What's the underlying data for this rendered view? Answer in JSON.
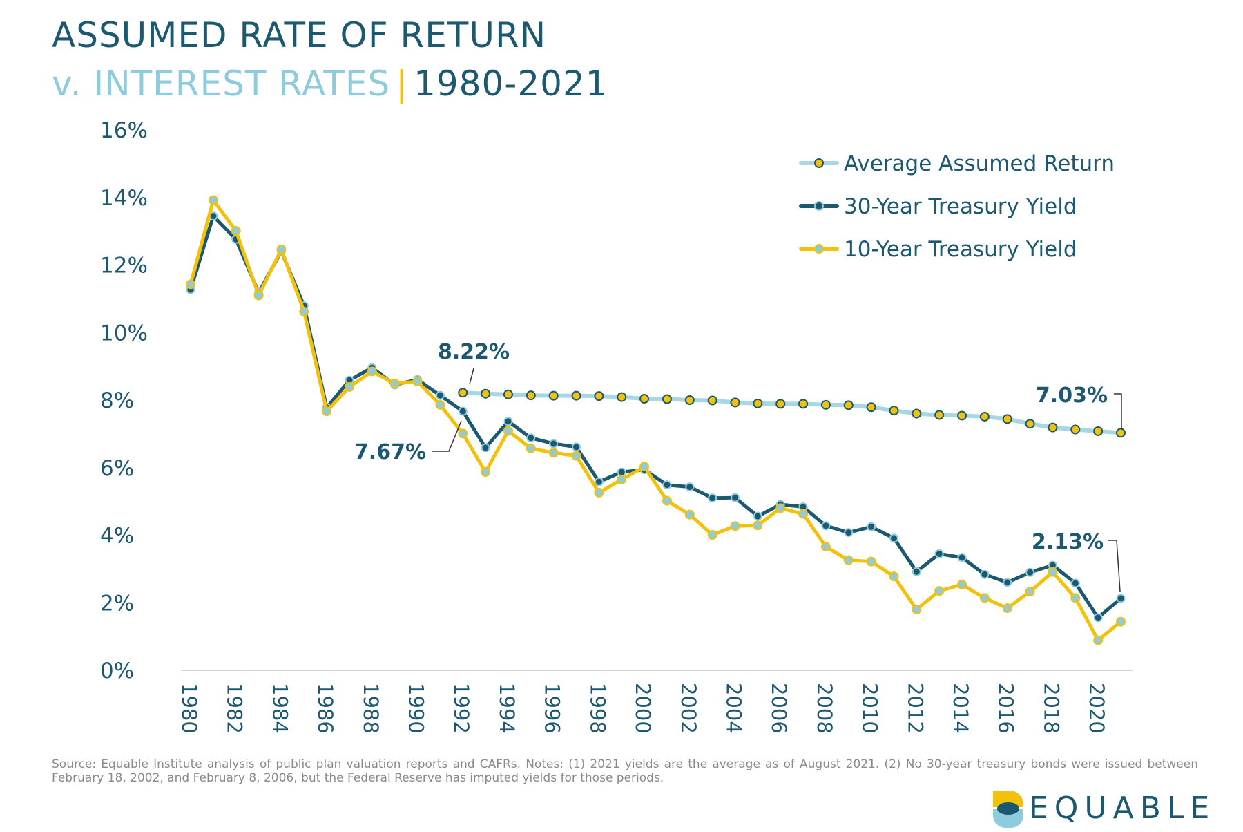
{
  "title": {
    "line1": "ASSUMED RATE OF RETURN",
    "line2_part1": "v. INTEREST RATES",
    "separator": "|",
    "line2_part2": "1980-2021"
  },
  "colors": {
    "title_dark": "#1c5870",
    "title_light": "#8ecbdc",
    "accent_yellow": "#f3c00a",
    "assumed_line": "#a8d6e3",
    "treasury30_line": "#1c5870",
    "treasury10_line": "#f3c00a",
    "axis_text": "#1c5870",
    "footnote_text": "#8a8a8a"
  },
  "chart_data": {
    "type": "line",
    "title": "ASSUMED RATE OF RETURN v. INTEREST RATES | 1980-2021",
    "xlabel": "",
    "ylabel": "",
    "ylim": [
      0,
      16
    ],
    "yticks": [
      "0%",
      "2%",
      "4%",
      "6%",
      "8%",
      "10%",
      "12%",
      "14%",
      "16%"
    ],
    "xticks": [
      "1980",
      "1982",
      "1984",
      "1986",
      "1988",
      "1990",
      "1992",
      "1994",
      "1996",
      "1998",
      "2000",
      "2002",
      "2004",
      "2006",
      "2008",
      "2010",
      "2012",
      "2014",
      "2016",
      "2018",
      "2020"
    ],
    "grid": false,
    "legend": "top-right",
    "series": [
      {
        "name": "Average Assumed Return",
        "x": [
          1992,
          1993,
          1994,
          1995,
          1996,
          1997,
          1998,
          1999,
          2000,
          2001,
          2002,
          2003,
          2004,
          2005,
          2006,
          2007,
          2008,
          2009,
          2010,
          2011,
          2012,
          2013,
          2014,
          2015,
          2016,
          2017,
          2018,
          2019,
          2020,
          2021
        ],
        "values": [
          8.22,
          8.19,
          8.17,
          8.14,
          8.13,
          8.13,
          8.12,
          8.09,
          8.04,
          8.03,
          8.0,
          7.99,
          7.93,
          7.9,
          7.89,
          7.89,
          7.86,
          7.85,
          7.79,
          7.69,
          7.6,
          7.56,
          7.54,
          7.51,
          7.44,
          7.3,
          7.19,
          7.13,
          7.08,
          7.03
        ]
      },
      {
        "name": "30-Year Treasury Yield",
        "x": [
          1980,
          1981,
          1982,
          1983,
          1984,
          1985,
          1986,
          1987,
          1988,
          1989,
          1990,
          1991,
          1992,
          1993,
          1994,
          1995,
          1996,
          1997,
          1998,
          1999,
          2000,
          2001,
          2002,
          2003,
          2004,
          2005,
          2006,
          2007,
          2008,
          2009,
          2010,
          2011,
          2012,
          2013,
          2014,
          2015,
          2016,
          2017,
          2018,
          2019,
          2020,
          2021
        ],
        "values": [
          11.27,
          13.45,
          12.76,
          11.18,
          12.41,
          10.79,
          7.78,
          8.59,
          8.96,
          8.45,
          8.61,
          8.14,
          7.67,
          6.59,
          7.37,
          6.88,
          6.71,
          6.61,
          5.58,
          5.87,
          5.94,
          5.49,
          5.43,
          5.1,
          5.11,
          4.56,
          4.91,
          4.84,
          4.28,
          4.08,
          4.25,
          3.91,
          2.92,
          3.45,
          3.34,
          2.84,
          2.6,
          2.9,
          3.11,
          2.58,
          1.56,
          2.13
        ]
      },
      {
        "name": "10-Year Treasury Yield",
        "x": [
          1980,
          1981,
          1982,
          1983,
          1984,
          1985,
          1986,
          1987,
          1988,
          1989,
          1990,
          1991,
          1992,
          1993,
          1994,
          1995,
          1996,
          1997,
          1998,
          1999,
          2000,
          2001,
          2002,
          2003,
          2004,
          2005,
          2006,
          2007,
          2008,
          2009,
          2010,
          2011,
          2012,
          2013,
          2014,
          2015,
          2016,
          2017,
          2018,
          2019,
          2020,
          2021
        ],
        "values": [
          11.43,
          13.92,
          13.01,
          11.1,
          12.46,
          10.62,
          7.67,
          8.39,
          8.85,
          8.49,
          8.55,
          7.86,
          7.01,
          5.87,
          7.09,
          6.57,
          6.44,
          6.35,
          5.26,
          5.65,
          6.03,
          5.02,
          4.61,
          4.01,
          4.27,
          4.29,
          4.8,
          4.63,
          3.66,
          3.26,
          3.22,
          2.78,
          1.8,
          2.35,
          2.54,
          2.14,
          1.84,
          2.33,
          2.91,
          2.14,
          0.89,
          1.44
        ]
      }
    ],
    "annotations": [
      {
        "text": "8.22%",
        "series": "Average Assumed Return",
        "x": 1992
      },
      {
        "text": "7.67%",
        "series": "30-Year Treasury Yield",
        "x": 1992
      },
      {
        "text": "7.03%",
        "series": "Average Assumed Return",
        "x": 2021
      },
      {
        "text": "2.13%",
        "series": "30-Year Treasury Yield",
        "x": 2021
      }
    ]
  },
  "footnote": "Source: Equable Institute analysis of public plan valuation reports and CAFRs. Notes: (1) 2021 yields are the average as of August 2021. (2) No 30-year treasury bonds were issued between February 18, 2002, and February 8, 2006, but the Federal Reserve has imputed yields for those periods.",
  "logo": {
    "text": "EQUABLE"
  }
}
